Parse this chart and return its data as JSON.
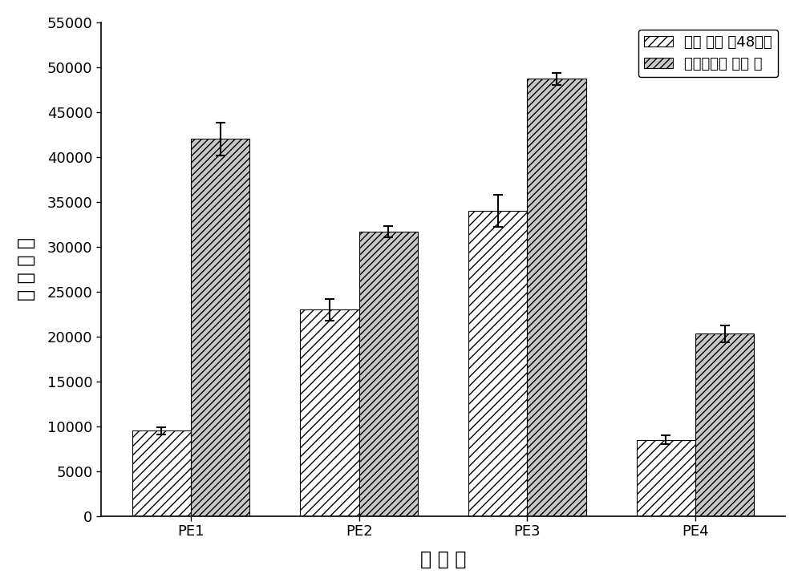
{
  "categories": [
    "PE1",
    "PE2",
    "PE3",
    "PE4"
  ],
  "series1_values": [
    9500,
    23000,
    34000,
    8500
  ],
  "series1_errors": [
    400,
    1200,
    1800,
    500
  ],
  "series2_values": [
    42000,
    31700,
    48700,
    20300
  ],
  "series2_errors": [
    1800,
    600,
    700,
    900
  ],
  "series1_label": "瞬时 转染 后48小时",
  "series2_label": "慢病毒感染 细胞 库",
  "ylabel": "荧 光 强 度",
  "xlabel": "启 动 子",
  "ylim": [
    0,
    55000
  ],
  "yticks": [
    0,
    5000,
    10000,
    15000,
    20000,
    25000,
    30000,
    35000,
    40000,
    45000,
    50000,
    55000
  ],
  "bar_width": 0.35,
  "series1_facecolor": "#ffffff",
  "series1_edgecolor": "#000000",
  "series1_hatch": "///",
  "series2_facecolor": "#c8c8c8",
  "series2_edgecolor": "#000000",
  "series2_hatch": "////",
  "background_color": "#ffffff",
  "label_fontsize": 17,
  "tick_fontsize": 13,
  "legend_fontsize": 13,
  "capsize": 4,
  "elinewidth": 1.5,
  "capthick": 1.5
}
